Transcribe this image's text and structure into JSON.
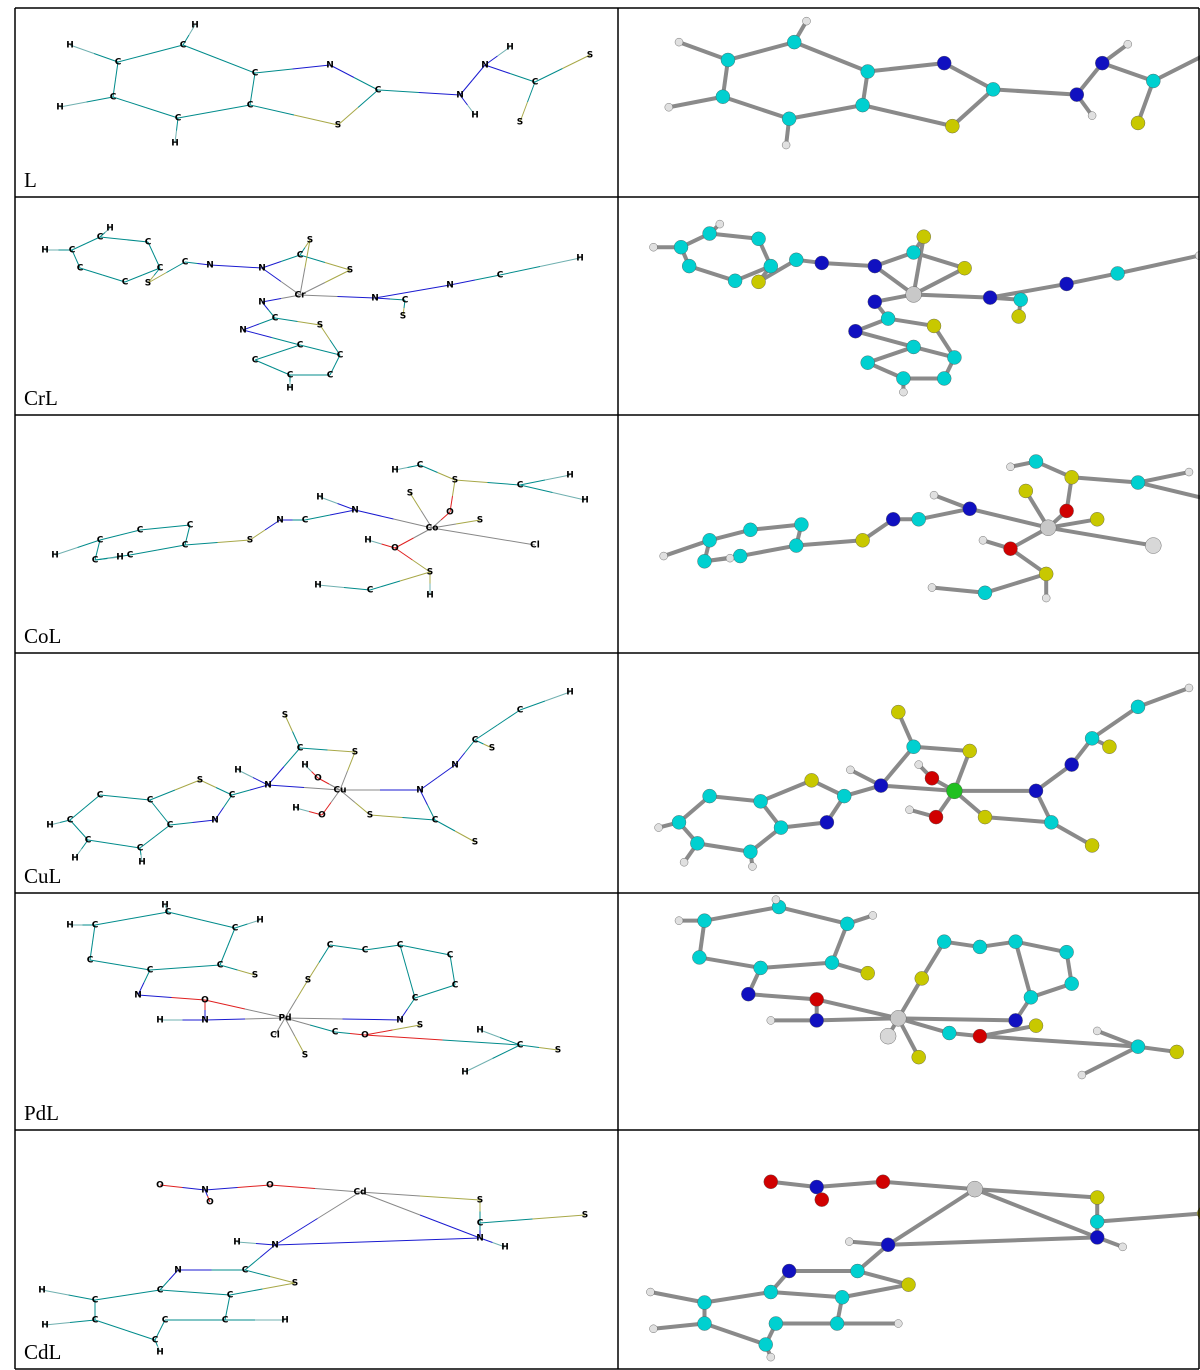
{
  "rows": [
    {
      "label": "L",
      "atoms": [
        "C",
        "C",
        "C",
        "C",
        "C",
        "C",
        "N",
        "C",
        "S",
        "N",
        "H",
        "N",
        "H",
        "C",
        "S",
        "S",
        "H",
        "H",
        "H",
        "H"
      ]
    },
    {
      "label": "CrL",
      "atoms": [
        "C",
        "C",
        "C",
        "C",
        "C",
        "C",
        "S",
        "C",
        "N",
        "N",
        "C",
        "S",
        "S",
        "Cr",
        "N",
        "C",
        "S",
        "N",
        "C",
        "H",
        "N",
        "C",
        "S",
        "C",
        "C",
        "C",
        "C",
        "C",
        "N",
        "H",
        "H",
        "H"
      ]
    },
    {
      "label": "CoL",
      "atoms": [
        "C",
        "C",
        "C",
        "C",
        "C",
        "C",
        "S",
        "N",
        "C",
        "N",
        "H",
        "Co",
        "S",
        "O",
        "S",
        "S",
        "C",
        "H",
        "C",
        "H",
        "H",
        "Cl",
        "O",
        "H",
        "S",
        "C",
        "H",
        "H",
        "H",
        "H"
      ]
    },
    {
      "label": "CuL",
      "atoms": [
        "C",
        "C",
        "C",
        "C",
        "C",
        "C",
        "S",
        "C",
        "N",
        "N",
        "H",
        "C",
        "S",
        "S",
        "Cu",
        "O",
        "H",
        "O",
        "H",
        "S",
        "C",
        "S",
        "N",
        "N",
        "C",
        "S",
        "C",
        "H",
        "H",
        "H",
        "H"
      ]
    },
    {
      "label": "PdL",
      "atoms": [
        "C",
        "C",
        "C",
        "C",
        "C",
        "C",
        "S",
        "N",
        "O",
        "N",
        "H",
        "Pd",
        "S",
        "C",
        "C",
        "C",
        "C",
        "C",
        "C",
        "N",
        "S",
        "C",
        "O",
        "S",
        "Cl",
        "C",
        "S",
        "H",
        "H",
        "H",
        "H",
        "H"
      ]
    },
    {
      "label": "CdL",
      "atoms": [
        "O",
        "N",
        "O",
        "O",
        "Cd",
        "S",
        "C",
        "S",
        "N",
        "H",
        "N",
        "H",
        "C",
        "S",
        "N",
        "C",
        "C",
        "C",
        "C",
        "C",
        "C",
        "C",
        "H",
        "H",
        "H",
        "H"
      ]
    }
  ]
}
